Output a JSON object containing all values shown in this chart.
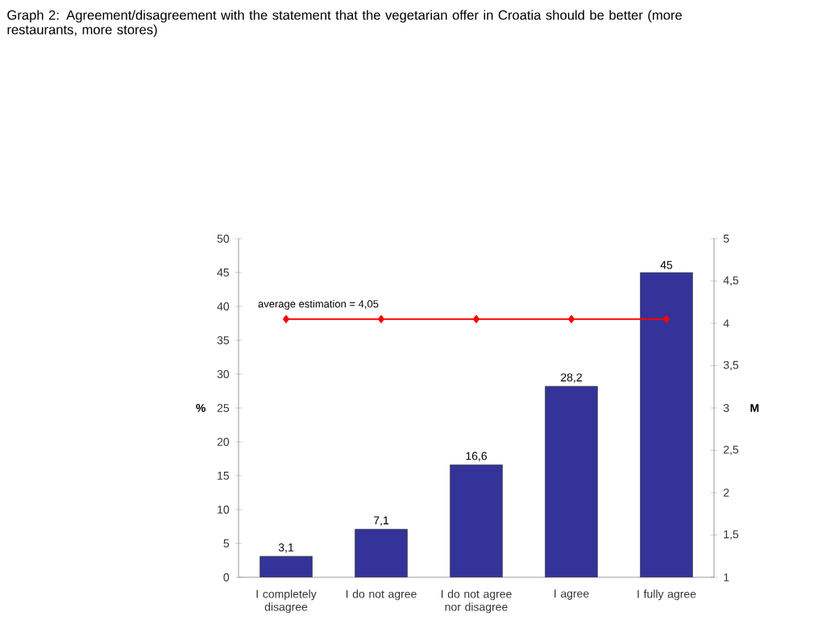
{
  "chart_data": {
    "type": "bar",
    "title": "Graph 2: Agreement/disagreement with the statement that the vegetarian offer in Croatia should be better (more restaurants, more stores)",
    "categories": [
      "I completely disagree",
      "I do not agree",
      "I do not agree nor disagree",
      "I agree",
      "I fully agree"
    ],
    "series": [
      {
        "color": "#333399",
        "values": [
          3.1,
          7.1,
          16.6,
          28.2,
          45
        ],
        "value_labels": [
          "3,1",
          "7,1",
          "16,6",
          "28,2",
          "45"
        ]
      },
      {
        "type": "line",
        "axis": "y2",
        "color": "#ff0000",
        "marker": "diamond",
        "line_style": "solid",
        "values": [
          4.05,
          4.05,
          4.05,
          4.05,
          4.05
        ]
      }
    ],
    "ylabel": "%",
    "y2label": "M",
    "ylim": [
      0,
      50
    ],
    "yticks": [
      0,
      5,
      10,
      15,
      20,
      25,
      30,
      35,
      40,
      45,
      50
    ],
    "y2lim": [
      1,
      5
    ],
    "y2ticks": [
      1,
      {
        "value": 1.5,
        "label": "1,5"
      },
      2,
      {
        "value": 2.5,
        "label": "2,5"
      },
      3,
      {
        "value": 3.5,
        "label": "3,5"
      },
      4,
      {
        "value": 4.5,
        "label": "4,5"
      },
      5
    ],
    "annotations": [
      "average estimation = 4,05"
    ],
    "grid": false
  }
}
